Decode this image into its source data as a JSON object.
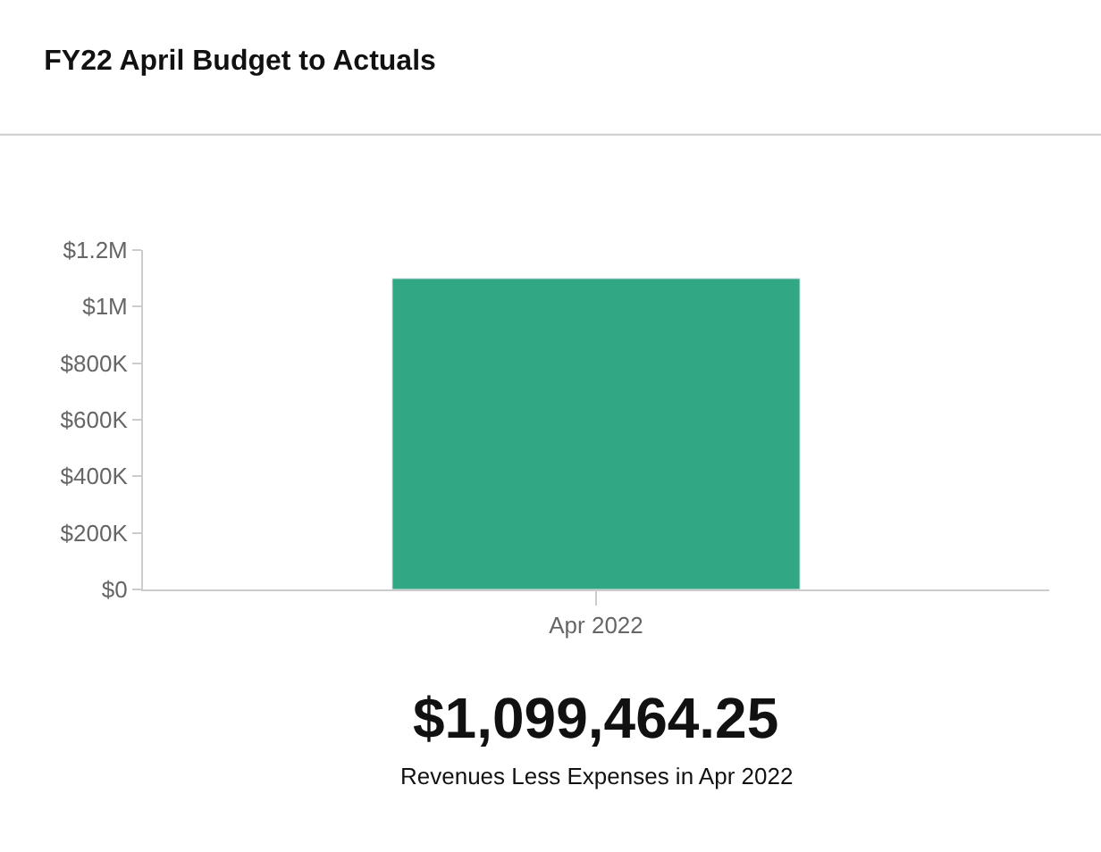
{
  "chart_data": {
    "type": "bar",
    "title": "FY22 April Budget to Actuals",
    "categories": [
      "Apr 2022"
    ],
    "series": [
      {
        "color": "#31a883",
        "values": [
          1099464.25
        ]
      }
    ],
    "value_labels": [
      "$1,099,464.25"
    ],
    "annotations": [
      "Revenues Less Expenses in Apr 2022"
    ],
    "ylim": [
      0,
      1200000
    ],
    "yticks": [
      {
        "value": 0,
        "label": "$0"
      },
      {
        "value": 200000,
        "label": "$200K"
      },
      {
        "value": 400000,
        "label": "$400K"
      },
      {
        "value": 600000,
        "label": "$600K"
      },
      {
        "value": 800000,
        "label": "$800K"
      },
      {
        "value": 1000000,
        "label": "$1M"
      },
      {
        "value": 1200000,
        "label": "$1.2M"
      }
    ],
    "grid": false,
    "legend": false
  }
}
